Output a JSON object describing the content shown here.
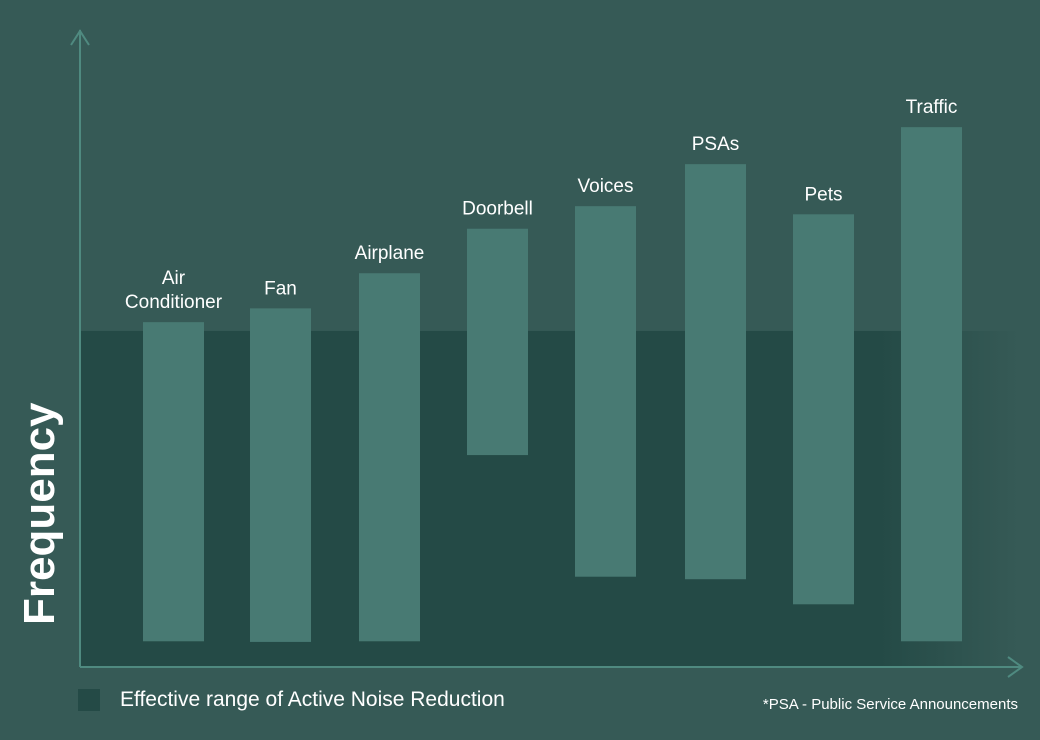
{
  "chart_data": {
    "type": "bar",
    "subtype": "floating-range",
    "title": "",
    "xlabel": "",
    "ylabel": "Frequency",
    "ylim": [
      0,
      100
    ],
    "grid": false,
    "categories": [
      "Air Conditioner",
      "Fan",
      "Airplane",
      "Doorbell",
      "Voices",
      "PSAs",
      "Pets",
      "Traffic"
    ],
    "label_lines": [
      [
        "Air",
        "Conditioner"
      ],
      [
        "Fan"
      ],
      [
        "Airplane"
      ],
      [
        "Doorbell"
      ],
      [
        "Voices"
      ],
      [
        "PSAs"
      ],
      [
        "Pets"
      ],
      [
        "Traffic"
      ]
    ],
    "ranges": [
      [
        4.1,
        55.0
      ],
      [
        4.0,
        57.2
      ],
      [
        4.1,
        62.8
      ],
      [
        33.8,
        69.9
      ],
      [
        14.4,
        73.5
      ],
      [
        14.0,
        80.2
      ],
      [
        10.0,
        72.2
      ],
      [
        4.1,
        86.1
      ]
    ],
    "anr_range": [
      0,
      53.6
    ],
    "legend": {
      "label": "Effective range of Active Noise Reduction",
      "placement": "bottom-left"
    },
    "footnote": "*PSA - Public Service Announcements",
    "colors": {
      "background": "#365a56",
      "anr_region": "#244a46",
      "bar": "#487a73",
      "axis": "#4f8a80"
    }
  }
}
